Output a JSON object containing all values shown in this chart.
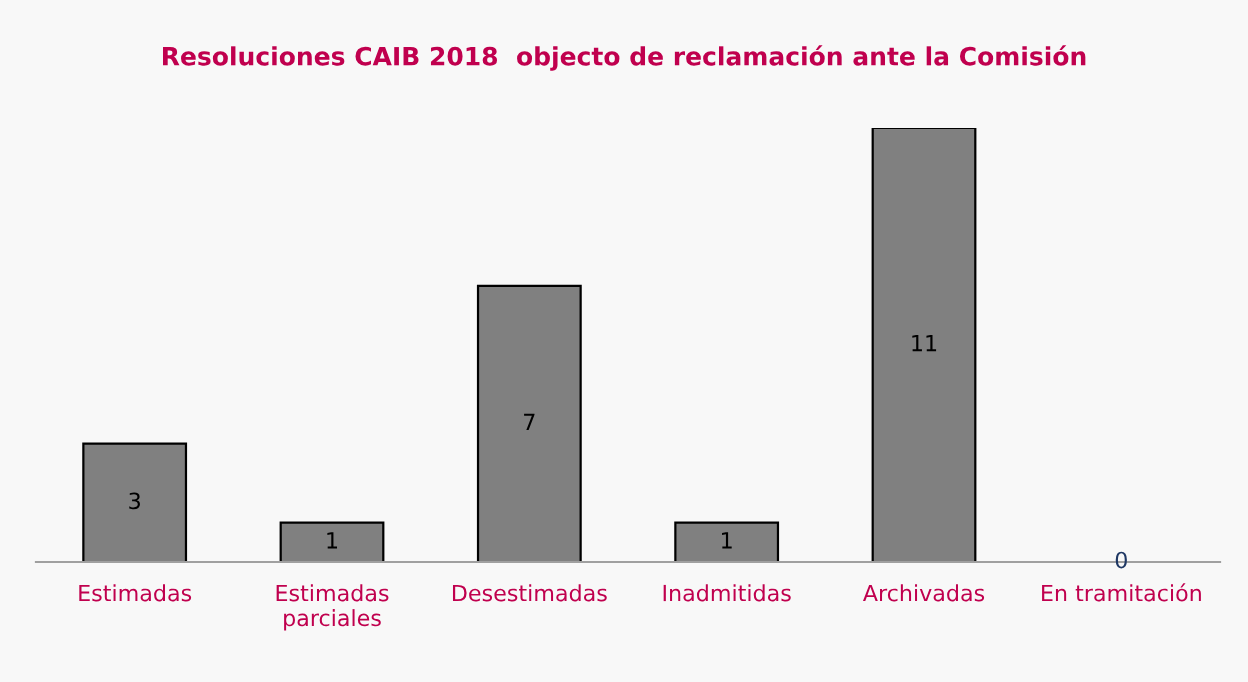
{
  "chart_data": {
    "type": "bar",
    "title": "Resoluciones CAIB 2018  objecto de reclamación ante la Comisión",
    "categories": [
      "Estimadas",
      "Estimadas\nparciales",
      "Desestimadas",
      "Inadmitidas",
      "Archivadas",
      "En tramitación"
    ],
    "values": [
      3,
      1,
      7,
      1,
      11,
      0
    ],
    "color": "#808080",
    "data_labels": true,
    "grid": false,
    "legend": false
  }
}
